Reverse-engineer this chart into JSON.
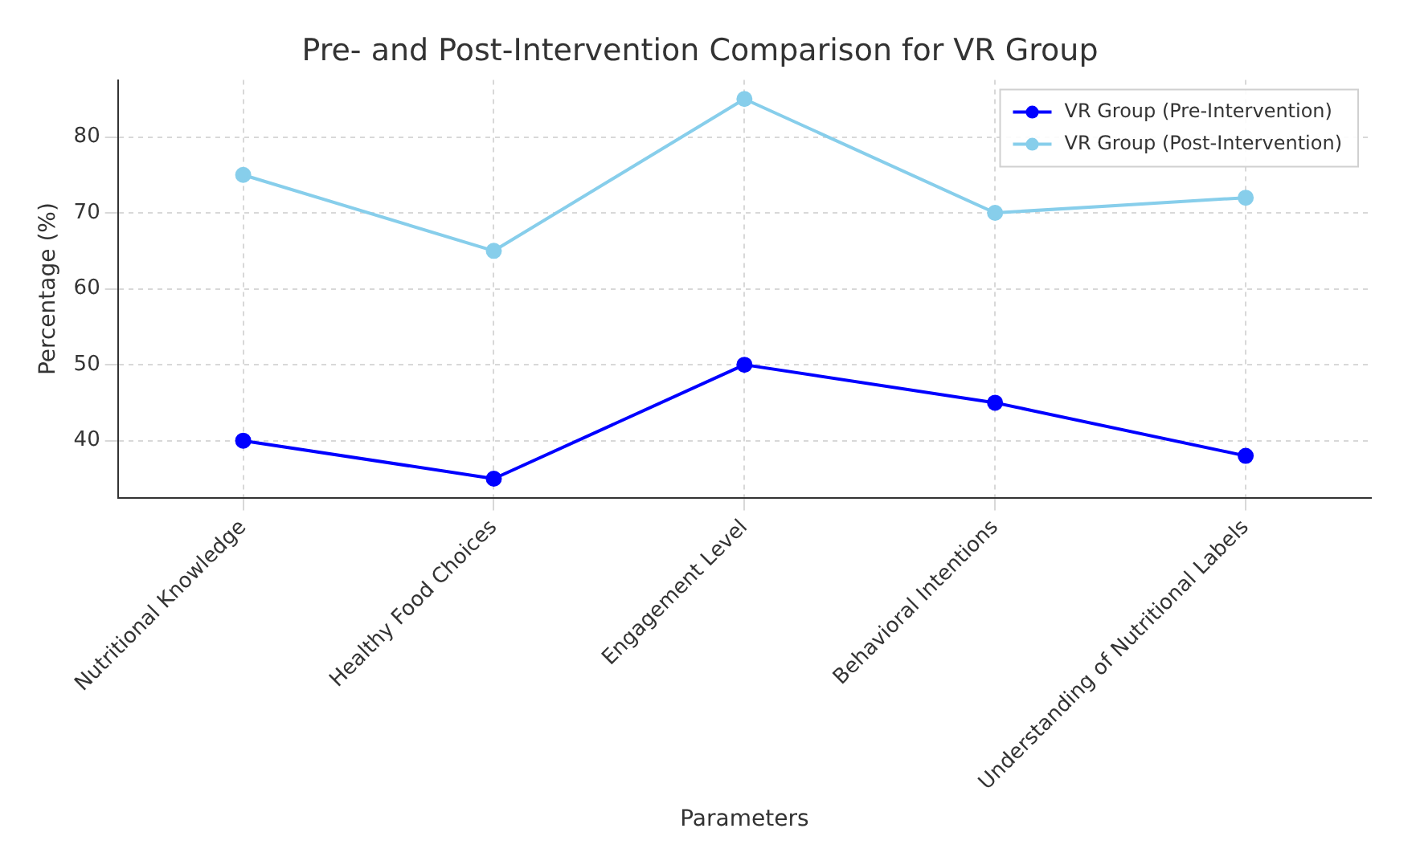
{
  "chart_data": {
    "type": "line",
    "title": "Pre- and Post-Intervention Comparison for VR Group",
    "xlabel": "Parameters",
    "ylabel": "Percentage (%)",
    "categories": [
      "Nutritional Knowledge",
      "Healthy Food Choices",
      "Engagement Level",
      "Behavioral Intentions",
      "Understanding of Nutritional Labels"
    ],
    "series": [
      {
        "name": "VR Group (Pre-Intervention)",
        "color": "#0000ff",
        "values": [
          40,
          35,
          50,
          45,
          38
        ]
      },
      {
        "name": "VR Group (Post-Intervention)",
        "color": "#87ceeb",
        "values": [
          75,
          65,
          85,
          70,
          72
        ]
      }
    ],
    "ylim": [
      32.5,
      87.5
    ],
    "yticks": [
      40,
      50,
      60,
      70,
      80
    ],
    "grid": true,
    "legend": "top right",
    "marker": "circle",
    "line_style": "solid"
  }
}
